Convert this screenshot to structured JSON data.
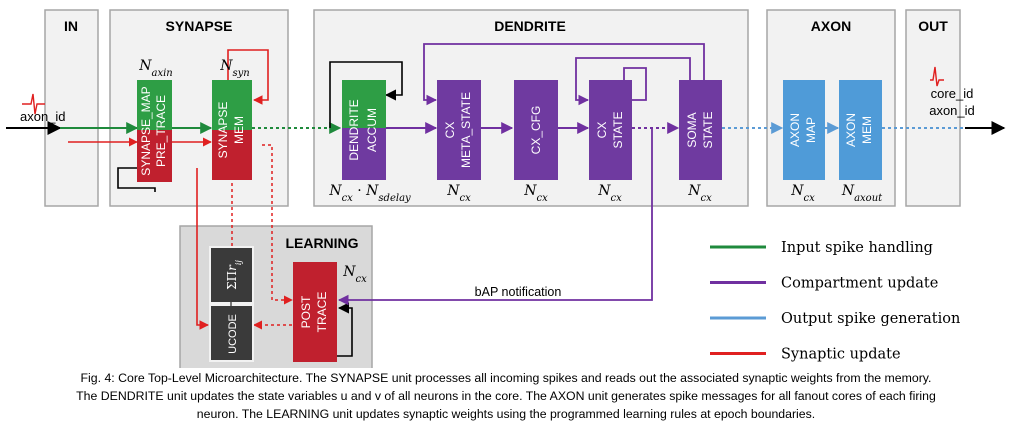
{
  "units": {
    "in": "IN",
    "synapse": "SYNAPSE",
    "dendrite": "DENDRITE",
    "axon": "AXON",
    "out": "OUT",
    "learning": "LEARNING"
  },
  "io": {
    "axon_id_in": "axon_id",
    "core_id": "core_id",
    "axon_id_out": "axon_id"
  },
  "blocks": {
    "synapse_map": "SYNAPSE_MAP",
    "pre_trace": "PRE_TRACE",
    "synapse": "SYNAPSE",
    "mem": "MEM",
    "dendrite": "DENDRITE",
    "accum": "ACCUM",
    "cx": "CX",
    "meta_state": "META_STATE",
    "cx_cfg": "CX_CFG",
    "cx2": "CX",
    "state": "STATE",
    "soma": "SOMA",
    "soma_state": "STATE",
    "axon1": "AXON",
    "map": "MAP",
    "axon2": "AXON",
    "axon_mem": "MEM",
    "post": "POST",
    "trace": "TRACE",
    "ucode": "UCODE"
  },
  "sizes": {
    "n_axin": {
      "base": "N",
      "sub": "axin"
    },
    "n_syn": {
      "base": "N",
      "sub": "syn"
    },
    "n_dend_a": {
      "base": "N",
      "sub": "cx"
    },
    "n_dend_dot": " · ",
    "n_dend_b": {
      "base": "N",
      "sub": "sdelay"
    },
    "n_cx1": {
      "base": "N",
      "sub": "cx"
    },
    "n_cx2": {
      "base": "N",
      "sub": "cx"
    },
    "n_cx3": {
      "base": "N",
      "sub": "cx"
    },
    "n_cx4": {
      "base": "N",
      "sub": "cx"
    },
    "n_cx5": {
      "base": "N",
      "sub": "cx"
    },
    "n_axout": {
      "base": "N",
      "sub": "axout"
    },
    "n_learn": {
      "base": "N",
      "sub": "cx"
    }
  },
  "sum_label": {
    "sigma": "ΣΠ",
    "var": "r",
    "sub": "ij"
  },
  "bap_label": "bAP notification",
  "legend": [
    {
      "label": "Input spike handling",
      "color": "#1f8a3c"
    },
    {
      "label": "Compartment update",
      "color": "#7030a0"
    },
    {
      "label": "Output spike generation",
      "color": "#5b9bd5"
    },
    {
      "label": "Synaptic update",
      "color": "#e02020"
    }
  ],
  "colors": {
    "green_block": "#2e9e45",
    "red_block": "#c0202e",
    "purple_block": "#6f3aa0",
    "blue_block": "#4f9bd8",
    "dark_block": "#3a3a3a",
    "unit_bg": "#f2f2f2",
    "learning_bg": "#d9d9d9"
  },
  "caption": [
    "Fig. 4: Core Top-Level Microarchitecture. The SYNAPSE unit processes all incoming spikes and reads out the associated synaptic weights from the memory.",
    "The DENDRITE unit updates the state variables u and v of all neurons in the core. The AXON unit generates spike messages for all fanout cores of each firing",
    "neuron. The LEARNING unit updates synaptic weights using the programmed learning rules at epoch boundaries."
  ]
}
